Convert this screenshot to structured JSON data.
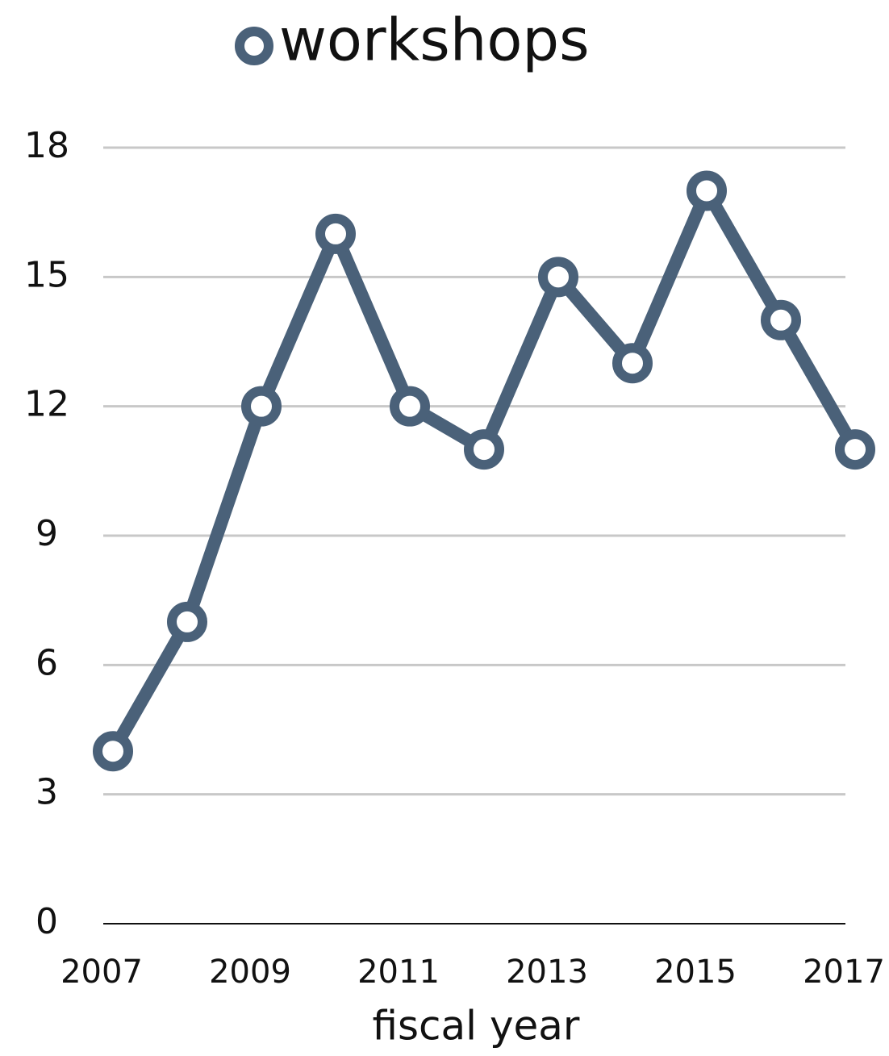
{
  "chart_data": {
    "type": "line",
    "x": [
      2007,
      2008,
      2009,
      2010,
      2011,
      2012,
      2013,
      2014,
      2015,
      2016,
      2017
    ],
    "series": [
      {
        "name": "workshops",
        "color": "#4a6179",
        "values": [
          4,
          7,
          12,
          16,
          12,
          11,
          15,
          13,
          17,
          14,
          11
        ]
      }
    ],
    "xlim": [
      2007,
      2017
    ],
    "xticks": [
      2007,
      2009,
      2011,
      2013,
      2015,
      2017
    ],
    "ylim": [
      0,
      18
    ],
    "yticks": [
      0,
      3,
      6,
      9,
      12,
      15,
      18
    ],
    "x_label": "fiscal year",
    "grid": true,
    "legend": "top"
  }
}
